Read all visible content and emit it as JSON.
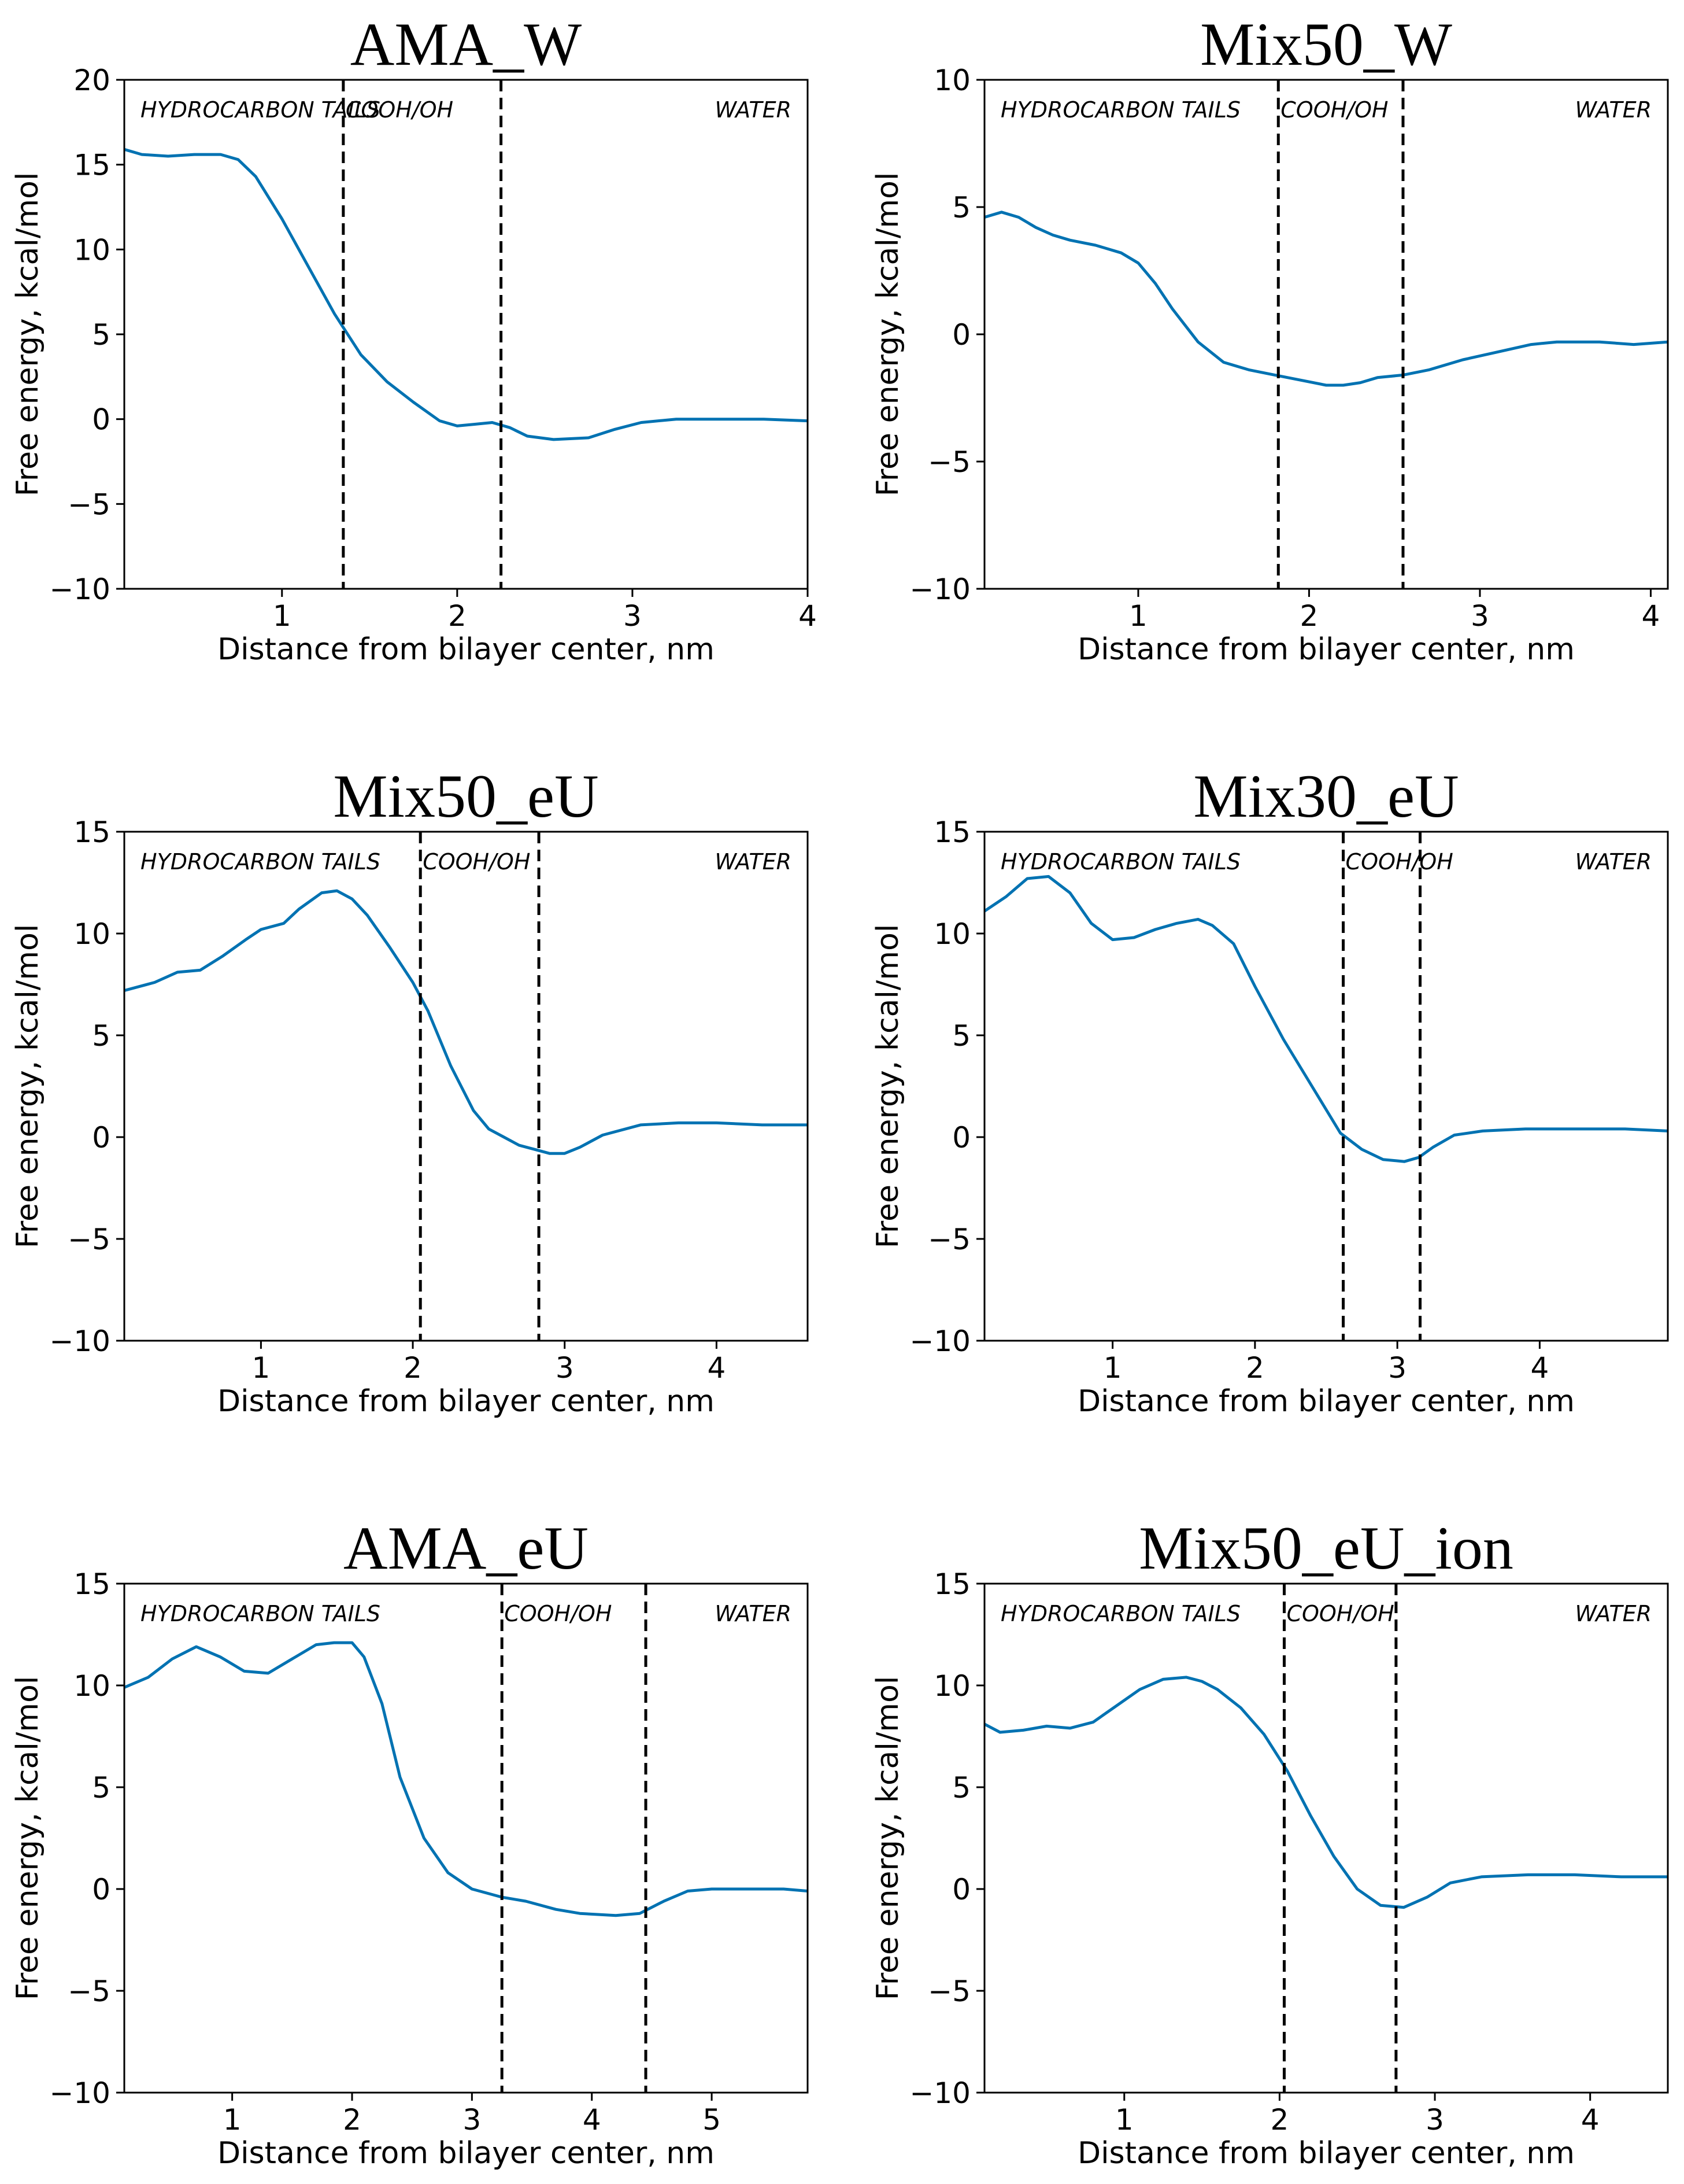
{
  "chart_data": [
    {
      "type": "line",
      "title": "AMA_W",
      "xlabel": "Distance from bilayer center, nm",
      "ylabel": "Free energy, kcal/mol",
      "xlim": [
        0.1,
        4.0
      ],
      "ylim": [
        -10,
        20
      ],
      "xticks": [
        1,
        2,
        3,
        4
      ],
      "yticks": [
        -10,
        -5,
        0,
        5,
        10,
        15,
        20
      ],
      "dividers": [
        1.35,
        2.25
      ],
      "regions": [
        "HYDROCARBON TAILS",
        "COOH/OH",
        "WATER"
      ],
      "series": [
        {
          "name": "AMA_W",
          "x": [
            0.1,
            0.2,
            0.35,
            0.5,
            0.65,
            0.75,
            0.85,
            1.0,
            1.15,
            1.3,
            1.45,
            1.6,
            1.75,
            1.9,
            2.0,
            2.1,
            2.2,
            2.3,
            2.4,
            2.55,
            2.75,
            2.9,
            3.05,
            3.25,
            3.5,
            3.75,
            4.0
          ],
          "y": [
            15.9,
            15.6,
            15.5,
            15.6,
            15.6,
            15.3,
            14.3,
            11.8,
            9.0,
            6.2,
            3.8,
            2.2,
            1.0,
            -0.1,
            -0.4,
            -0.3,
            -0.2,
            -0.5,
            -1.0,
            -1.2,
            -1.1,
            -0.6,
            -0.2,
            0.0,
            0.0,
            0.0,
            -0.1
          ]
        }
      ]
    },
    {
      "type": "line",
      "title": "Mix50_W",
      "xlabel": "Distance from bilayer center, nm",
      "ylabel": "Free energy, kcal/mol",
      "xlim": [
        0.1,
        4.1
      ],
      "ylim": [
        -10,
        10
      ],
      "xticks": [
        1,
        2,
        3,
        4
      ],
      "yticks": [
        -10,
        -5,
        0,
        5,
        10
      ],
      "dividers": [
        1.82,
        2.55
      ],
      "regions": [
        "HYDROCARBON TAILS",
        "COOH/OH",
        "WATER"
      ],
      "series": [
        {
          "name": "Mix50_W",
          "x": [
            0.1,
            0.2,
            0.3,
            0.4,
            0.5,
            0.6,
            0.75,
            0.9,
            1.0,
            1.1,
            1.2,
            1.35,
            1.5,
            1.65,
            1.8,
            1.95,
            2.1,
            2.2,
            2.3,
            2.4,
            2.55,
            2.7,
            2.9,
            3.1,
            3.3,
            3.45,
            3.7,
            3.9,
            4.1
          ],
          "y": [
            4.6,
            4.8,
            4.6,
            4.2,
            3.9,
            3.7,
            3.5,
            3.2,
            2.8,
            2.0,
            1.0,
            -0.3,
            -1.1,
            -1.4,
            -1.6,
            -1.8,
            -2.0,
            -2.0,
            -1.9,
            -1.7,
            -1.6,
            -1.4,
            -1.0,
            -0.7,
            -0.4,
            -0.3,
            -0.3,
            -0.4,
            -0.3
          ]
        }
      ]
    },
    {
      "type": "line",
      "title": "Mix50_eU",
      "xlabel": "Distance from bilayer center, nm",
      "ylabel": "Free energy, kcal/mol",
      "xlim": [
        0.1,
        4.6
      ],
      "ylim": [
        -10,
        15
      ],
      "xticks": [
        1,
        2,
        3,
        4
      ],
      "yticks": [
        -10,
        -5,
        0,
        5,
        10,
        15
      ],
      "dividers": [
        2.05,
        2.83
      ],
      "regions": [
        "HYDROCARBON TAILS",
        "COOH/OH",
        "WATER"
      ],
      "series": [
        {
          "name": "Mix50_eU",
          "x": [
            0.1,
            0.3,
            0.45,
            0.6,
            0.75,
            0.9,
            1.0,
            1.15,
            1.25,
            1.4,
            1.5,
            1.6,
            1.7,
            1.85,
            2.0,
            2.1,
            2.25,
            2.4,
            2.5,
            2.6,
            2.7,
            2.8,
            2.9,
            3.0,
            3.1,
            3.25,
            3.5,
            3.75,
            4.0,
            4.3,
            4.6
          ],
          "y": [
            7.2,
            7.6,
            8.1,
            8.2,
            8.9,
            9.7,
            10.2,
            10.5,
            11.2,
            12.0,
            12.1,
            11.7,
            10.9,
            9.3,
            7.6,
            6.2,
            3.5,
            1.3,
            0.4,
            0.0,
            -0.4,
            -0.6,
            -0.8,
            -0.8,
            -0.5,
            0.1,
            0.6,
            0.7,
            0.7,
            0.6,
            0.6
          ]
        }
      ]
    },
    {
      "type": "line",
      "title": "Mix30_eU",
      "xlabel": "Distance from bilayer center, nm",
      "ylabel": "Free energy, kcal/mol",
      "xlim": [
        0.1,
        4.9
      ],
      "ylim": [
        -10,
        15
      ],
      "xticks": [
        1,
        2,
        3,
        4
      ],
      "yticks": [
        -10,
        -5,
        0,
        5,
        10,
        15
      ],
      "dividers": [
        2.62,
        3.16
      ],
      "regions": [
        "HYDROCARBON TAILS",
        "COOH/OH",
        "WATER"
      ],
      "series": [
        {
          "name": "Mix30_eU",
          "x": [
            0.1,
            0.25,
            0.4,
            0.55,
            0.7,
            0.85,
            1.0,
            1.15,
            1.3,
            1.45,
            1.6,
            1.7,
            1.85,
            2.0,
            2.2,
            2.4,
            2.6,
            2.75,
            2.9,
            3.05,
            3.15,
            3.25,
            3.4,
            3.6,
            3.9,
            4.3,
            4.6,
            4.9
          ],
          "y": [
            11.1,
            11.8,
            12.7,
            12.8,
            12.0,
            10.5,
            9.7,
            9.8,
            10.2,
            10.5,
            10.7,
            10.4,
            9.5,
            7.4,
            4.8,
            2.5,
            0.2,
            -0.6,
            -1.1,
            -1.2,
            -1.0,
            -0.5,
            0.1,
            0.3,
            0.4,
            0.4,
            0.4,
            0.3
          ]
        }
      ]
    },
    {
      "type": "line",
      "title": "AMA_eU",
      "xlabel": "Distance from bilayer center, nm",
      "ylabel": "Free energy, kcal/mol",
      "xlim": [
        0.1,
        5.8
      ],
      "ylim": [
        -10,
        15
      ],
      "xticks": [
        1,
        2,
        3,
        4,
        5
      ],
      "yticks": [
        -10,
        -5,
        0,
        5,
        10,
        15
      ],
      "dividers": [
        3.25,
        4.45
      ],
      "regions": [
        "HYDROCARBON TAILS",
        "COOH/OH",
        "WATER"
      ],
      "series": [
        {
          "name": "AMA_eU",
          "x": [
            0.1,
            0.3,
            0.5,
            0.7,
            0.9,
            1.1,
            1.3,
            1.5,
            1.7,
            1.85,
            2.0,
            2.1,
            2.25,
            2.4,
            2.6,
            2.8,
            3.0,
            3.25,
            3.45,
            3.7,
            3.9,
            4.2,
            4.4,
            4.6,
            4.8,
            5.0,
            5.3,
            5.6,
            5.8
          ],
          "y": [
            9.9,
            10.4,
            11.3,
            11.9,
            11.4,
            10.7,
            10.6,
            11.3,
            12.0,
            12.1,
            12.1,
            11.4,
            9.1,
            5.5,
            2.5,
            0.8,
            0.0,
            -0.4,
            -0.6,
            -1.0,
            -1.2,
            -1.3,
            -1.2,
            -0.6,
            -0.1,
            0.0,
            0.0,
            0.0,
            -0.1
          ]
        }
      ]
    },
    {
      "type": "line",
      "title": "Mix50_eU_ion",
      "xlabel": "Distance from bilayer center, nm",
      "ylabel": "Free energy, kcal/mol",
      "xlim": [
        0.1,
        4.5
      ],
      "ylim": [
        -10,
        15
      ],
      "xticks": [
        1,
        2,
        3,
        4
      ],
      "yticks": [
        -10,
        -5,
        0,
        5,
        10,
        15
      ],
      "dividers": [
        2.03,
        2.75
      ],
      "regions": [
        "HYDROCARBON TAILS",
        "COOH/OH",
        "WATER"
      ],
      "series": [
        {
          "name": "Mix50_eU_ion",
          "x": [
            0.1,
            0.2,
            0.35,
            0.5,
            0.65,
            0.8,
            0.95,
            1.1,
            1.25,
            1.4,
            1.5,
            1.6,
            1.75,
            1.9,
            2.05,
            2.2,
            2.35,
            2.5,
            2.65,
            2.8,
            2.95,
            3.1,
            3.3,
            3.6,
            3.9,
            4.2,
            4.5
          ],
          "y": [
            8.1,
            7.7,
            7.8,
            8.0,
            7.9,
            8.2,
            9.0,
            9.8,
            10.3,
            10.4,
            10.2,
            9.8,
            8.9,
            7.6,
            5.8,
            3.6,
            1.6,
            0.0,
            -0.8,
            -0.9,
            -0.4,
            0.3,
            0.6,
            0.7,
            0.7,
            0.6,
            0.6
          ]
        }
      ]
    }
  ]
}
